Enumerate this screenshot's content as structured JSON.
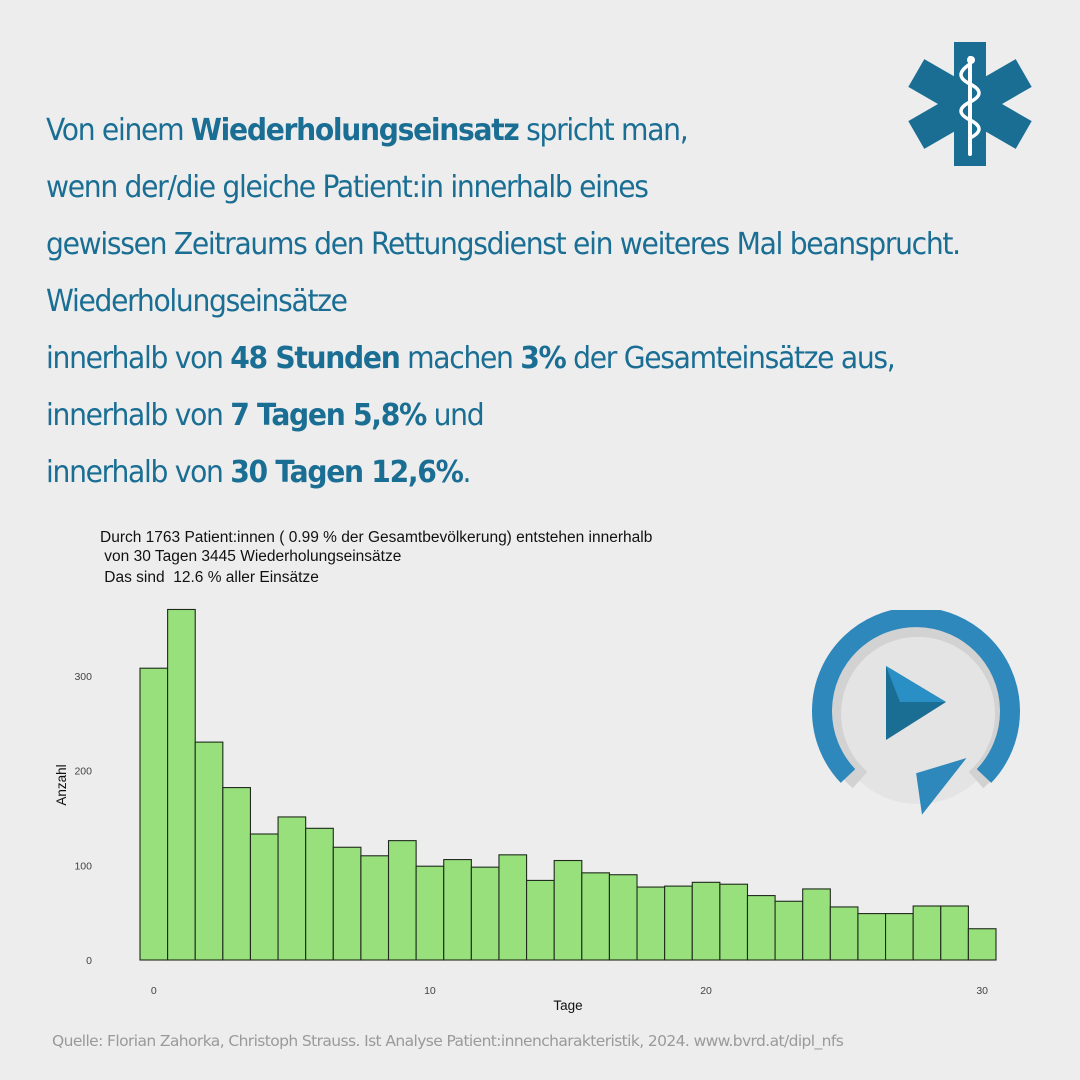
{
  "headline": {
    "l1_a": "Von einem ",
    "l1_b": "Wiederholungseinsatz",
    "l1_c": " spricht man,",
    "l2": "wenn der/die gleiche Patient:in innerhalb eines",
    "l3": "gewissen Zeitraums den Rettungsdienst ein weiteres Mal beansprucht.",
    "l4": "Wiederholungseinsätze",
    "l5_a": "innerhalb von ",
    "l5_b": "48 Stunden",
    "l5_c": " machen ",
    "l5_d": "3%",
    "l5_e": " der Gesamteinsätze aus,",
    "l6_a": "innerhalb von ",
    "l6_b": "7 Tagen 5,8%",
    "l6_c": " und",
    "l7_a": "innerhalb von ",
    "l7_b": "30 Tagen 12,6%",
    "l7_c": "."
  },
  "colors": {
    "brand": "#1a6e94",
    "bar_fill": "#98e07c",
    "bar_stroke": "#1f2a1c",
    "replay_blue": "#2e88bc"
  },
  "icons": {
    "top_right": "star-of-life-icon",
    "chart_overlay": "replay-icon"
  },
  "chart_data": {
    "type": "bar",
    "title_lines": [
      "Durch 1763 Patient:innen ( 0.99 % der Gesamtbevölkerung) entstehen innerhalb",
      " von 30 Tagen 3445 Wiederholungseinsätze",
      " Das sind  12.6 % aller Einsätze"
    ],
    "xlabel": "Tage",
    "ylabel": "Anzahl",
    "x": [
      0,
      1,
      2,
      3,
      4,
      5,
      6,
      7,
      8,
      9,
      10,
      11,
      12,
      13,
      14,
      15,
      16,
      17,
      18,
      19,
      20,
      21,
      22,
      23,
      24,
      25,
      26,
      27,
      28,
      29,
      30
    ],
    "values": [
      308,
      370,
      230,
      182,
      133,
      151,
      139,
      119,
      110,
      126,
      99,
      106,
      98,
      111,
      84,
      105,
      92,
      90,
      77,
      78,
      82,
      80,
      68,
      62,
      75,
      56,
      49,
      49,
      57,
      57,
      33
    ],
    "xticks": [
      0,
      10,
      20,
      30
    ],
    "yticks": [
      0,
      100,
      200,
      300
    ],
    "xlim": [
      -0.5,
      30.5
    ],
    "ylim": [
      0,
      380
    ],
    "grid": false
  },
  "source": "Quelle: Florian Zahorka, Christoph Strauss. Ist Analyse Patient:innencharakteristik, 2024. www.bvrd.at/dipl_nfs"
}
